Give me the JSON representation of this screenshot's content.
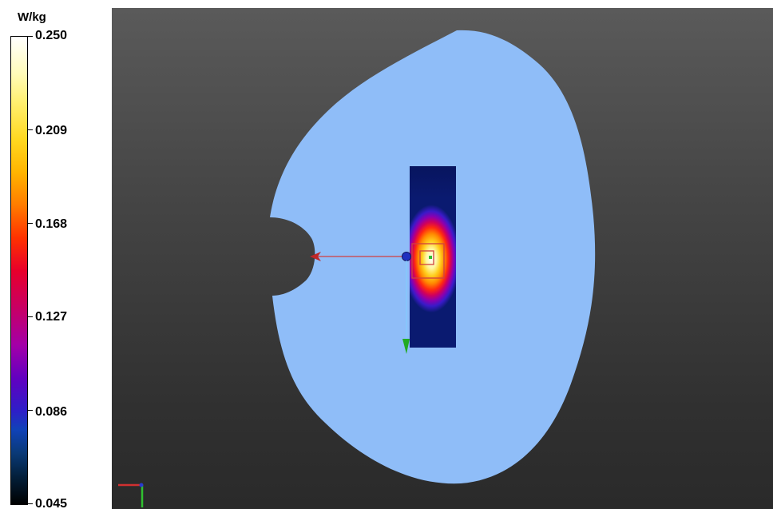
{
  "legend": {
    "unit": "W/kg",
    "ticks": [
      {
        "label": "0.250",
        "fraction": 0.0
      },
      {
        "label": "0.209",
        "fraction": 0.2
      },
      {
        "label": "0.168",
        "fraction": 0.4
      },
      {
        "label": "0.127",
        "fraction": 0.6
      },
      {
        "label": "0.086",
        "fraction": 0.8
      },
      {
        "label": "0.045",
        "fraction": 1.0
      }
    ]
  },
  "colors": {
    "phantom": "#8fbdf8",
    "background_top": "#5a5a5a",
    "background_bottom": "#2a2a2a",
    "probe_line": "#d04040",
    "axis_y": "#22aa22"
  },
  "icons": {
    "probe_marker": "blue-dot-icon",
    "axis_triad": "axis-triad-icon"
  }
}
